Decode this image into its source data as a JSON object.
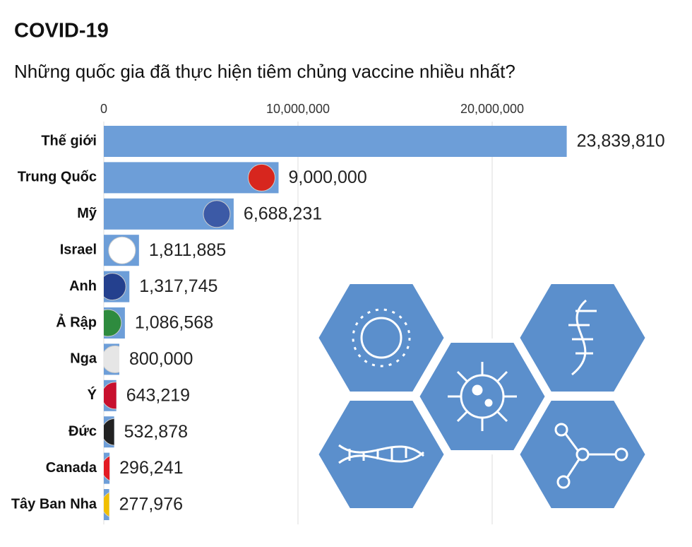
{
  "chart_data": {
    "type": "hbar",
    "title": "COVID-19",
    "subtitle": "Những quốc gia đã thực hiện tiêm chủng vaccine nhiều nhất?",
    "categories": [
      "Thế giới",
      "Trung Quốc",
      "Mỹ",
      "Israel",
      "Anh",
      "Ả Rập",
      "Nga",
      "Ý",
      "Đức",
      "Canada",
      "Tây Ban Nha"
    ],
    "values": [
      23839810,
      9000000,
      6688231,
      1811885,
      1317745,
      1086568,
      800000,
      643219,
      532878,
      296241,
      277976
    ],
    "value_labels": [
      "23,839,810",
      "9,000,000",
      "6,688,231",
      "1,811,885",
      "1,317,745",
      "1,086,568",
      "800,000",
      "643,219",
      "532,878",
      "296,241",
      "277,976"
    ],
    "color": "#6d9ed8",
    "xlim": [
      0,
      24000000
    ],
    "xticks": [
      0,
      {
        "value": 10000000,
        "label": "10,000,000"
      },
      {
        "value": 20000000,
        "label": "20,000,000"
      }
    ],
    "grid": true
  }
}
